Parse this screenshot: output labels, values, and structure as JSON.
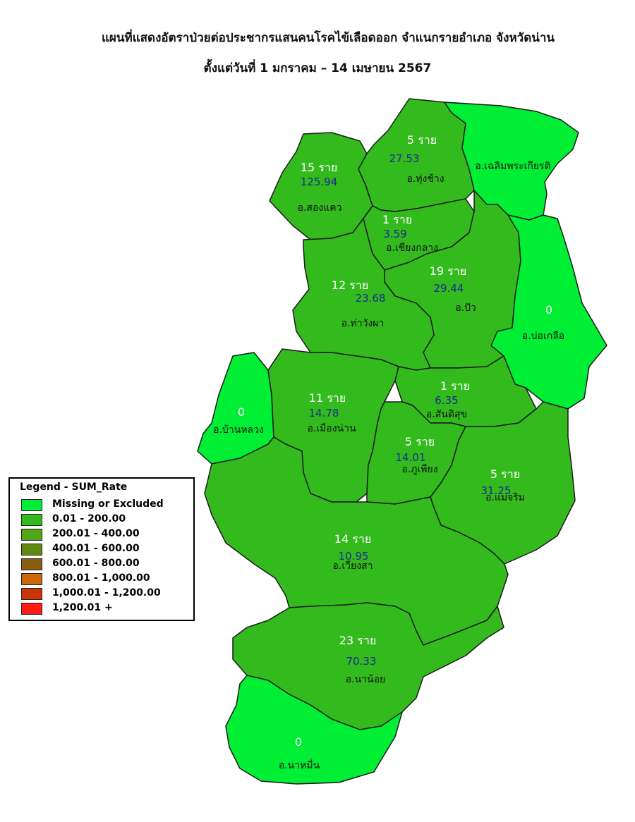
{
  "title_line1": "แผนที่แสดงอัตราป่วยต่อประชากรแสนคนโรคไข้เลือดออก จำแนกรายอำเภอ จังหวัดน่าน",
  "title_line2": "ตั้งแต่วันที่ 1 มกราคม – 14 เมษายน 2567",
  "colors": {
    "missing": "#00ee33",
    "bin1": "#33bb1e",
    "bin2": "#55a614",
    "bin3": "#5e8a10",
    "bin4": "#8a5c10",
    "bin5": "#cc6608",
    "bin6": "#cc3306",
    "bin7": "#ff1a14",
    "border": "#1a1a1a"
  },
  "legend": {
    "title": "Legend - SUM_Rate",
    "items": [
      {
        "label": "Missing or Excluded",
        "color": "#00ee33"
      },
      {
        "label": "0.01 - 200.00",
        "color": "#33bb1e"
      },
      {
        "label": "200.01 - 400.00",
        "color": "#55a614"
      },
      {
        "label": "400.01 - 600.00",
        "color": "#5e8a10"
      },
      {
        "label": "600.01 - 800.00",
        "color": "#8a5c10"
      },
      {
        "label": "800.01 - 1,000.00",
        "color": "#cc6608"
      },
      {
        "label": "1,000.01 - 1,200.00",
        "color": "#cc3306"
      },
      {
        "label": "1,200.01 +",
        "color": "#ff1a14"
      }
    ]
  },
  "districts": [
    {
      "name": "อ.สองแคว",
      "cases": "15 ราย",
      "rate": "125.94",
      "category": "bin1"
    },
    {
      "name": "อ.ทุ่งช้าง",
      "cases": "5 ราย",
      "rate": "27.53",
      "category": "bin1"
    },
    {
      "name": "อ.เฉลิมพระเกียรติ",
      "cases": "",
      "rate": "",
      "category": "missing"
    },
    {
      "name": "อ.เชียงกลาง",
      "cases": "1 ราย",
      "rate": "3.59",
      "category": "bin1"
    },
    {
      "name": "อ.ปัว",
      "cases": "19 ราย",
      "rate": "29.44",
      "category": "bin1"
    },
    {
      "name": "อ.ท่าวังผา",
      "cases": "12 ราย",
      "rate": "23.68",
      "category": "bin1"
    },
    {
      "name": "อ.บ่อเกลือ",
      "cases": "0",
      "rate": "",
      "category": "missing"
    },
    {
      "name": "อ.บ้านหลวง",
      "cases": "0",
      "rate": "",
      "category": "missing"
    },
    {
      "name": "อ.เมืองน่าน",
      "cases": "11 ราย",
      "rate": "14.78",
      "category": "bin1"
    },
    {
      "name": "อ.สันติสุข",
      "cases": "1 ราย",
      "rate": "6.35",
      "category": "bin1"
    },
    {
      "name": "อ.ภูเพียง",
      "cases": "5 ราย",
      "rate": "14.01",
      "category": "bin1"
    },
    {
      "name": "อ.แม่จริม",
      "cases": "5 ราย",
      "rate": "31.25",
      "category": "bin1"
    },
    {
      "name": "อ.เวียงสา",
      "cases": "14 ราย",
      "rate": "10.95",
      "category": "bin1"
    },
    {
      "name": "อ.นาน้อย",
      "cases": "23 ราย",
      "rate": "70.33",
      "category": "bin1"
    },
    {
      "name": "อ.นาหมื่น",
      "cases": "0",
      "rate": "",
      "category": "missing"
    }
  ]
}
